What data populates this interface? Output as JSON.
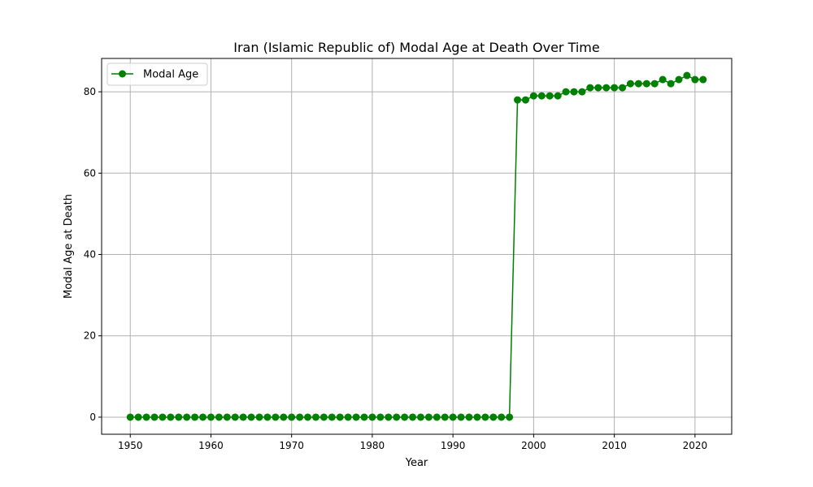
{
  "chart_data": {
    "type": "line",
    "title": "Iran (Islamic Republic of) Modal Age at Death Over Time",
    "xlabel": "Year",
    "ylabel": "Modal Age at Death",
    "xlim": [
      1946.45,
      2024.55
    ],
    "ylim": [
      -4.2,
      88.2
    ],
    "xticks": [
      1950,
      1960,
      1970,
      1980,
      1990,
      2000,
      2010,
      2020
    ],
    "yticks": [
      0,
      20,
      40,
      60,
      80
    ],
    "grid": true,
    "legend_position": "top-left",
    "series": [
      {
        "name": "Modal Age",
        "color": "#008000",
        "marker": "circle",
        "x": [
          1950,
          1951,
          1952,
          1953,
          1954,
          1955,
          1956,
          1957,
          1958,
          1959,
          1960,
          1961,
          1962,
          1963,
          1964,
          1965,
          1966,
          1967,
          1968,
          1969,
          1970,
          1971,
          1972,
          1973,
          1974,
          1975,
          1976,
          1977,
          1978,
          1979,
          1980,
          1981,
          1982,
          1983,
          1984,
          1985,
          1986,
          1987,
          1988,
          1989,
          1990,
          1991,
          1992,
          1993,
          1994,
          1995,
          1996,
          1997,
          1998,
          1999,
          2000,
          2001,
          2002,
          2003,
          2004,
          2005,
          2006,
          2007,
          2008,
          2009,
          2010,
          2011,
          2012,
          2013,
          2014,
          2015,
          2016,
          2017,
          2018,
          2019,
          2020,
          2021
        ],
        "y": [
          0,
          0,
          0,
          0,
          0,
          0,
          0,
          0,
          0,
          0,
          0,
          0,
          0,
          0,
          0,
          0,
          0,
          0,
          0,
          0,
          0,
          0,
          0,
          0,
          0,
          0,
          0,
          0,
          0,
          0,
          0,
          0,
          0,
          0,
          0,
          0,
          0,
          0,
          0,
          0,
          0,
          0,
          0,
          0,
          0,
          0,
          0,
          0,
          78,
          78,
          79,
          79,
          79,
          79,
          80,
          80,
          80,
          81,
          81,
          81,
          81,
          81,
          82,
          82,
          82,
          82,
          83,
          82,
          83,
          84,
          83,
          83
        ]
      }
    ]
  }
}
